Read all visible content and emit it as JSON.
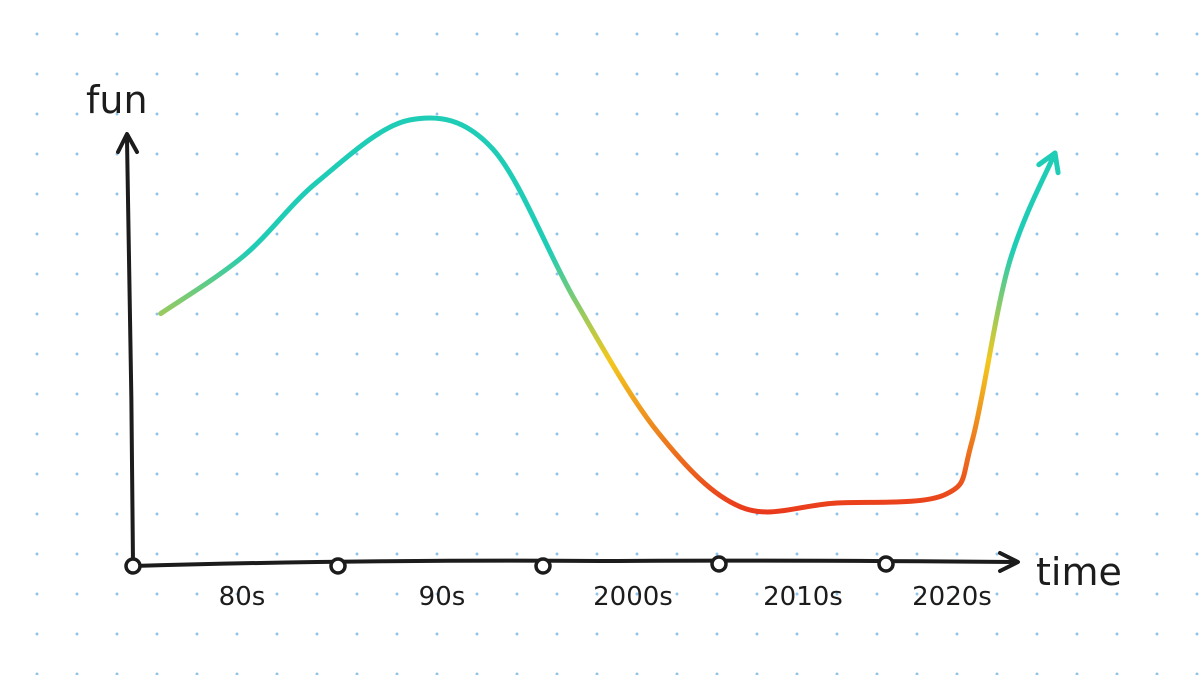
{
  "chart_data": {
    "type": "line",
    "xlabel": "time",
    "ylabel": "fun",
    "categories": [
      "80s",
      "90s",
      "2000s",
      "2010s",
      "2020s"
    ],
    "ylim": [
      0,
      10
    ],
    "series": [
      {
        "x": [
          0.15,
          0.6,
          1.0,
          1.5,
          1.95,
          2.4,
          2.85,
          3.3,
          3.8,
          4.4,
          4.55,
          4.75,
          5.0
        ],
        "values": [
          5.3,
          6.7,
          8.5,
          10.0,
          9.3,
          5.6,
          2.4,
          0.6,
          0.7,
          0.9,
          2.2,
          6.5,
          9.2
        ]
      }
    ],
    "grid": true,
    "colors": {
      "low": "#e8241c",
      "mid": "#f2c81e",
      "high": "#1fcdb6",
      "axis": "#1c1c1c",
      "dots": "#8fc3ea"
    }
  }
}
